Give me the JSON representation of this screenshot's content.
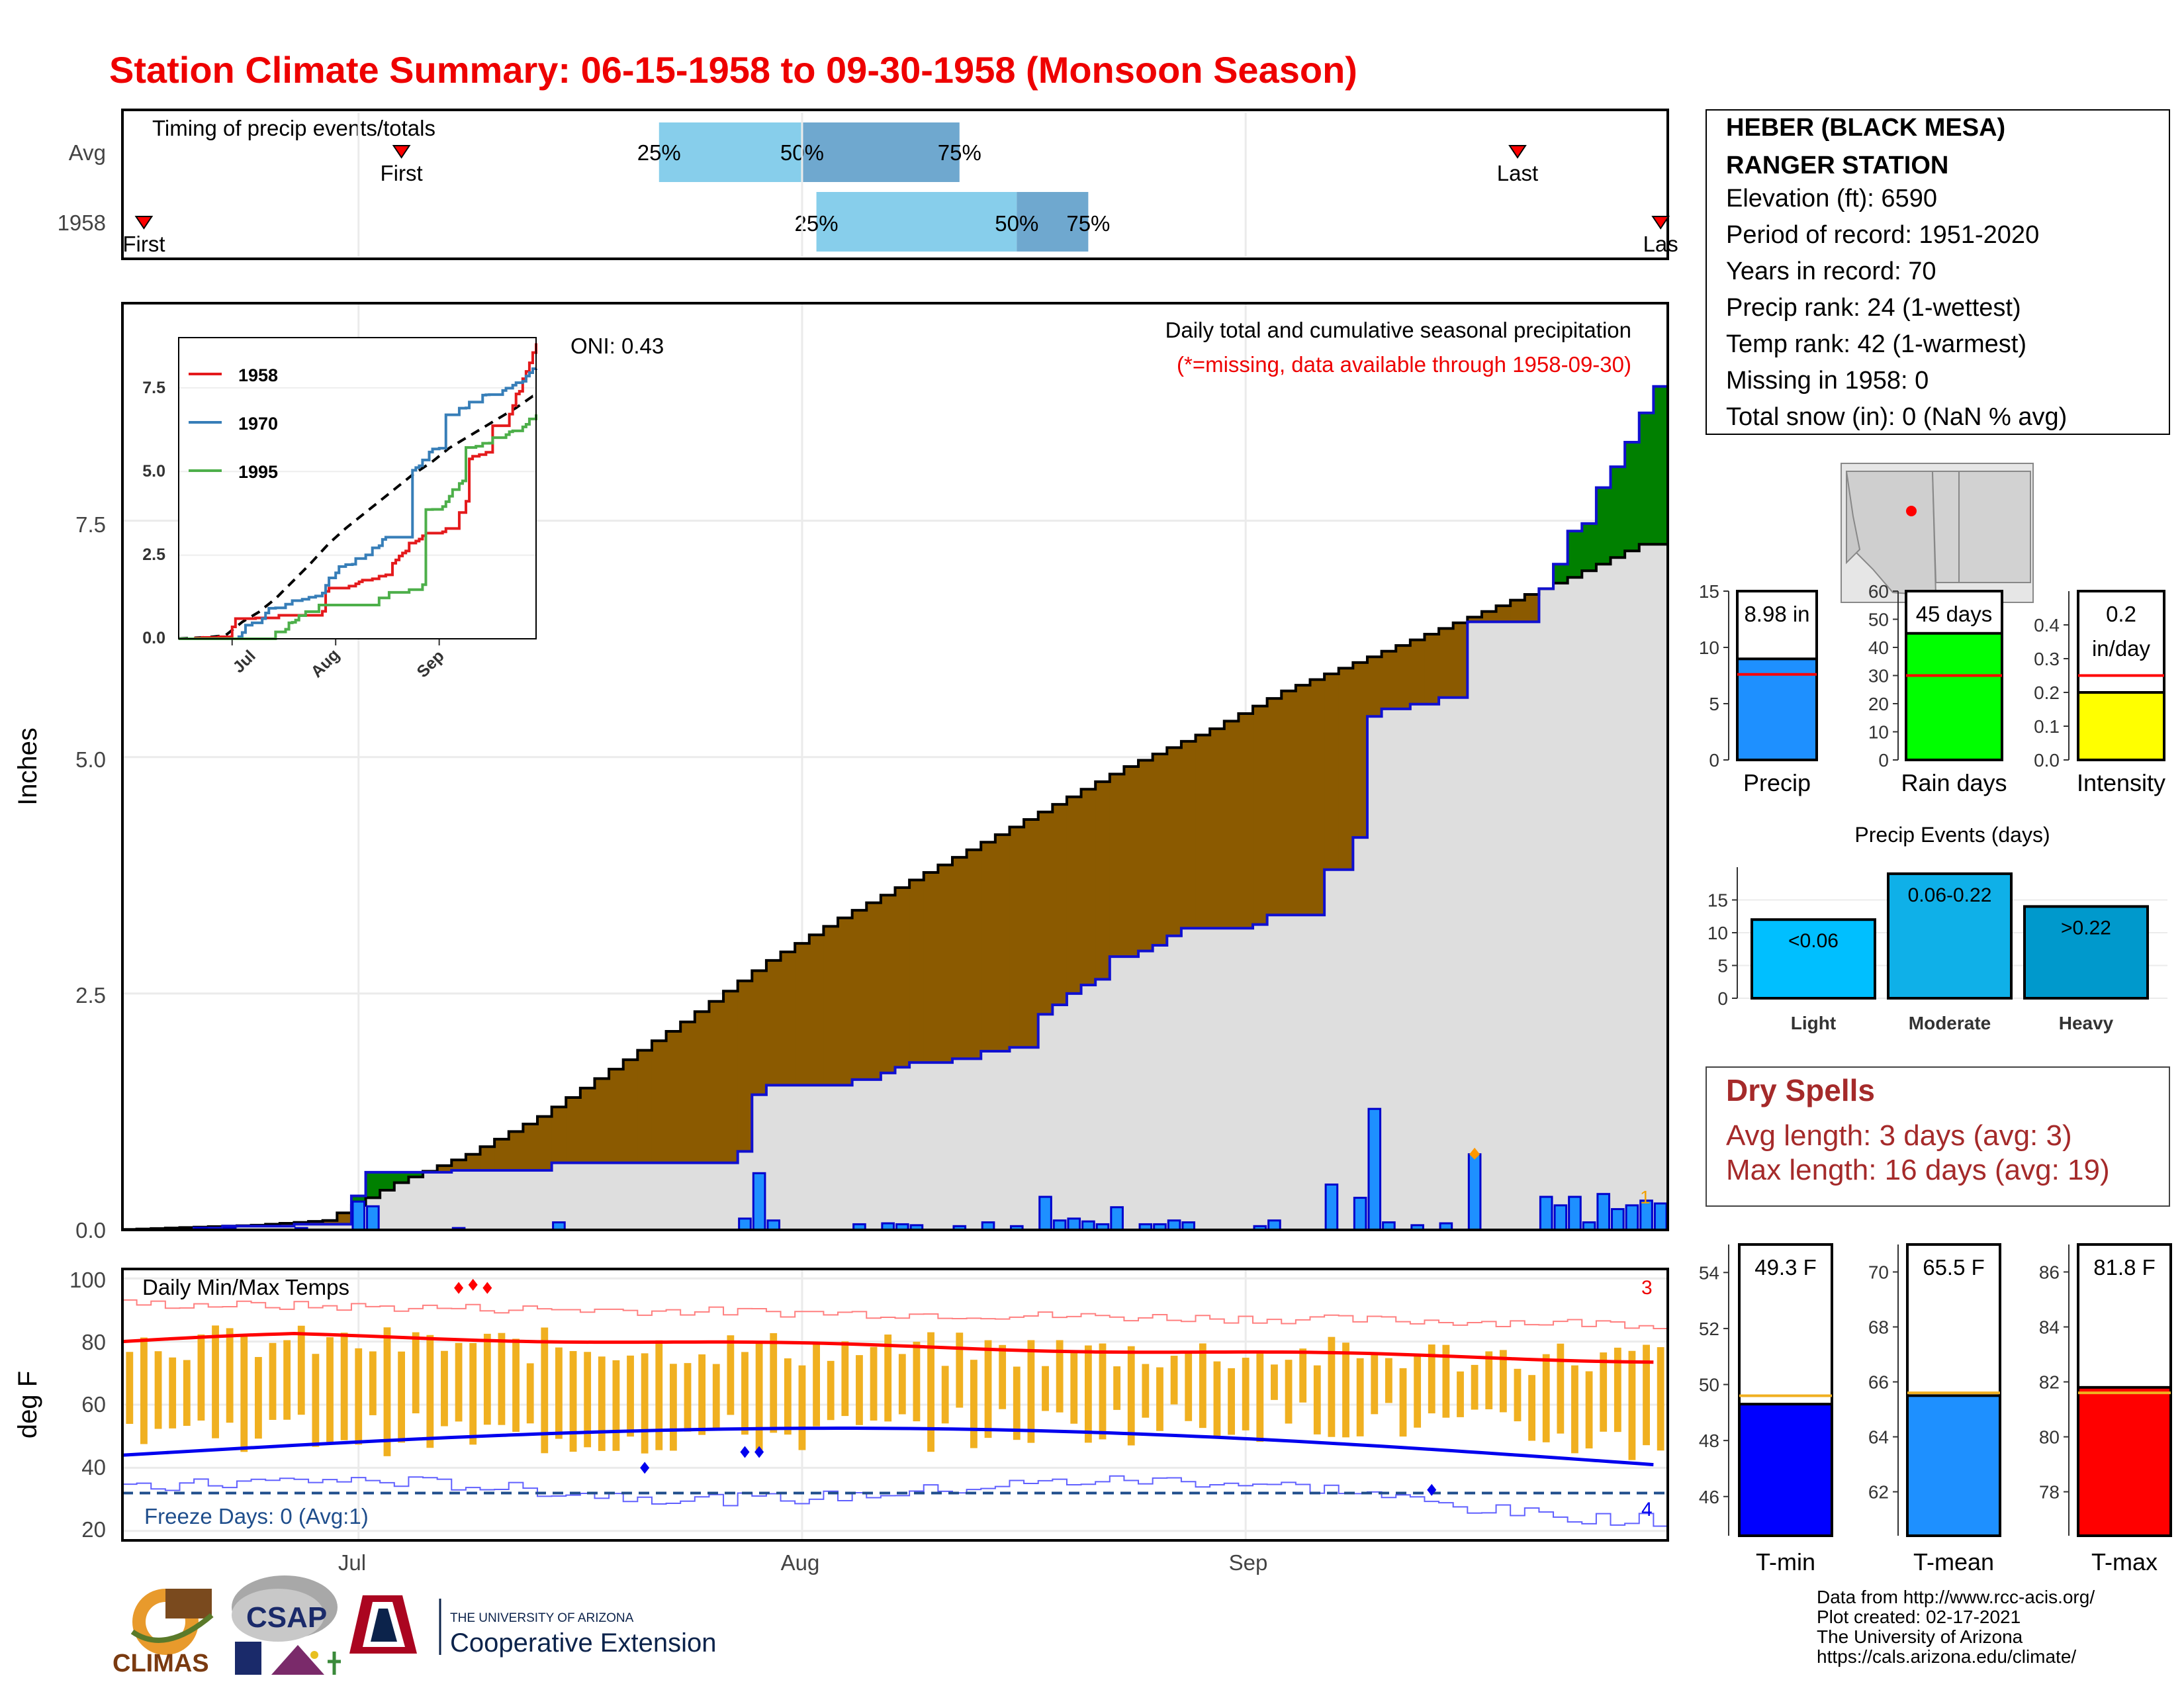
{
  "title": "Station Climate Summary: 06-15-1958 to 09-30-1958 (Monsoon Season)",
  "colors": {
    "title": "#ee0000",
    "light_blue": "#87ceeb",
    "mid_blue": "#6fa8cf",
    "green": "#008000",
    "brown": "#8b5a00",
    "gray_fill": "#dedede",
    "bar_blue": "#1e90ff",
    "orange": "#f0b020",
    "red": "#ff0000",
    "blue": "#0000ff"
  },
  "timing": {
    "title": "Timing of precip events/totals",
    "rows": [
      {
        "label": "Avg",
        "first_label": "First",
        "first_date": "1958-07-04",
        "last_label": "Last",
        "last_date": "1958-09-20",
        "p25": "1958-07-22",
        "p50": "1958-08-01",
        "p75": "1958-08-12",
        "p25_label": "25%",
        "p50_label": "50%",
        "p75_label": "75%"
      },
      {
        "label": "1958",
        "first_label": "First",
        "first_date": "1958-06-16",
        "last_label": "Las",
        "last_date": "1958-09-30",
        "p25": "1958-08-02",
        "p50": "1958-08-16",
        "p75": "1958-08-21",
        "p25_label": "25%",
        "p50_label": "50%",
        "p75_label": "75%"
      }
    ]
  },
  "precip_panel": {
    "ylabel": "Inches",
    "yticks": [
      "0.0",
      "2.5",
      "5.0",
      "7.5"
    ],
    "oni": "ONI: 0.43",
    "desc": "Daily total and cumulative seasonal precipitation",
    "missing_note": "(*=missing, data available through 1958-09-30)",
    "orange_count": "1"
  },
  "inset": {
    "legend": [
      "1958",
      "1970",
      "1995"
    ],
    "yticks": [
      "0.0",
      "2.5",
      "5.0",
      "7.5"
    ],
    "xticks": [
      "Jul",
      "Aug",
      "Sep"
    ]
  },
  "temp_panel": {
    "ylabel": "deg F",
    "title": "Daily Min/Max Temps",
    "yticks": [
      "20",
      "40",
      "60",
      "80",
      "100"
    ],
    "freeze": "Freeze Days: 0 (Avg:1)",
    "max_count": "3",
    "min_count": "4"
  },
  "xaxis": {
    "ticks": [
      "Jul",
      "Aug",
      "Sep"
    ]
  },
  "station": {
    "name1": "HEBER (BLACK MESA)",
    "name2": "RANGER STATION",
    "lines": [
      "Elevation (ft): 6590",
      "Period of record: 1951-2020",
      "Years in record: 70",
      "Precip rank: 24 (1-wettest)",
      "Temp rank: 42 (1-warmest)",
      "Missing in 1958: 0",
      "Total snow (in): 0 (NaN % avg)"
    ]
  },
  "summary_bars": {
    "precip": {
      "label": "Precip",
      "value": 8.98,
      "avg": 7.6,
      "text": "8.98 in",
      "yticks": [
        "0",
        "5",
        "10",
        "15"
      ],
      "ylim": [
        0,
        15
      ]
    },
    "raindays": {
      "label": "Rain days",
      "value": 45,
      "avg": 30,
      "text": "45 days",
      "yticks": [
        "0",
        "10",
        "20",
        "30",
        "40",
        "50",
        "60"
      ],
      "ylim": [
        0,
        60
      ]
    },
    "intensity": {
      "label": "Intensity",
      "value": 0.2,
      "avg": 0.25,
      "text1": "0.2",
      "text2": "in/day",
      "yticks": [
        "0.0",
        "0.1",
        "0.2",
        "0.3",
        "0.4"
      ],
      "ylim": [
        0,
        0.5
      ]
    }
  },
  "events": {
    "title": "Precip Events (days)",
    "yticks": [
      "0",
      "5",
      "10",
      "15"
    ],
    "bars": [
      {
        "label": "Light",
        "value": 12,
        "text": "<0.06",
        "color": "#00bfff"
      },
      {
        "label": "Moderate",
        "value": 19,
        "text": "0.06-0.22",
        "color": "#0fb0e8"
      },
      {
        "label": "Heavy",
        "value": 14,
        "text": ">0.22",
        "color": "#0099cc"
      }
    ]
  },
  "dry": {
    "title": "Dry Spells",
    "avg": "Avg length: 3 days (avg: 3)",
    "max": "Max length: 16 days (avg: 19)"
  },
  "temp_bars": [
    {
      "label": "T-min",
      "value": 49.3,
      "avg": 49.6,
      "text": "49.3 F",
      "yticks": [
        "46",
        "48",
        "50",
        "52",
        "54"
      ],
      "ylim": [
        44.6,
        55
      ],
      "color": "#0000ff"
    },
    {
      "label": "T-mean",
      "value": 65.5,
      "avg": 65.6,
      "text": "65.5 F",
      "yticks": [
        "62",
        "64",
        "66",
        "68",
        "70"
      ],
      "ylim": [
        60.4,
        71
      ],
      "color": "#1e90ff"
    },
    {
      "label": "T-max",
      "value": 81.8,
      "avg": 81.6,
      "text": "81.8 F",
      "yticks": [
        "78",
        "80",
        "82",
        "84",
        "86"
      ],
      "ylim": [
        76.4,
        87
      ],
      "color": "#ff0000"
    }
  ],
  "footer": {
    "lines": [
      "Data from http://www.rcc-acis.org/",
      "Plot created: 02-17-2021",
      "The University of Arizona",
      "https://cals.arizona.edu/climate/"
    ],
    "climas": "CLIMAS",
    "csap": "CSAP",
    "ua_small": "THE UNIVERSITY OF ARIZONA",
    "coop": "Cooperative Extension"
  },
  "chart_data": {
    "type": "area",
    "title": "Daily total and cumulative seasonal precipitation",
    "ylabel": "Inches",
    "ylim": [
      0,
      9.8
    ],
    "x_start": "1958-06-15",
    "x_end": "1958-09-30",
    "daily_precip": [
      {
        "date": "1958-06-20",
        "value": 0.02
      },
      {
        "date": "1958-06-22",
        "value": 0.02
      },
      {
        "date": "1958-06-27",
        "value": 0.02
      },
      {
        "date": "1958-07-01",
        "value": 0.3
      },
      {
        "date": "1958-07-02",
        "value": 0.25
      },
      {
        "date": "1958-07-08",
        "value": 0.02
      },
      {
        "date": "1958-07-15",
        "value": 0.08
      },
      {
        "date": "1958-07-28",
        "value": 0.12
      },
      {
        "date": "1958-07-29",
        "value": 0.6
      },
      {
        "date": "1958-07-30",
        "value": 0.1
      },
      {
        "date": "1958-08-05",
        "value": 0.06
      },
      {
        "date": "1958-08-07",
        "value": 0.07
      },
      {
        "date": "1958-08-08",
        "value": 0.06
      },
      {
        "date": "1958-08-09",
        "value": 0.05
      },
      {
        "date": "1958-08-12",
        "value": 0.04
      },
      {
        "date": "1958-08-14",
        "value": 0.08
      },
      {
        "date": "1958-08-16",
        "value": 0.04
      },
      {
        "date": "1958-08-18",
        "value": 0.35
      },
      {
        "date": "1958-08-19",
        "value": 0.1
      },
      {
        "date": "1958-08-20",
        "value": 0.12
      },
      {
        "date": "1958-08-21",
        "value": 0.09
      },
      {
        "date": "1958-08-22",
        "value": 0.06
      },
      {
        "date": "1958-08-23",
        "value": 0.24
      },
      {
        "date": "1958-08-25",
        "value": 0.06
      },
      {
        "date": "1958-08-26",
        "value": 0.06
      },
      {
        "date": "1958-08-27",
        "value": 0.1
      },
      {
        "date": "1958-08-28",
        "value": 0.08
      },
      {
        "date": "1958-09-02",
        "value": 0.04
      },
      {
        "date": "1958-09-03",
        "value": 0.1
      },
      {
        "date": "1958-09-07",
        "value": 0.48
      },
      {
        "date": "1958-09-09",
        "value": 0.34
      },
      {
        "date": "1958-09-10",
        "value": 1.28
      },
      {
        "date": "1958-09-11",
        "value": 0.08
      },
      {
        "date": "1958-09-13",
        "value": 0.05
      },
      {
        "date": "1958-09-15",
        "value": 0.07
      },
      {
        "date": "1958-09-17",
        "value": 0.8
      },
      {
        "date": "1958-09-22",
        "value": 0.35
      },
      {
        "date": "1958-09-23",
        "value": 0.26
      },
      {
        "date": "1958-09-24",
        "value": 0.35
      },
      {
        "date": "1958-09-25",
        "value": 0.08
      },
      {
        "date": "1958-09-26",
        "value": 0.38
      },
      {
        "date": "1958-09-27",
        "value": 0.22
      },
      {
        "date": "1958-09-28",
        "value": 0.26
      },
      {
        "date": "1958-09-29",
        "value": 0.31
      },
      {
        "date": "1958-09-30",
        "value": 0.28
      }
    ],
    "avg_cumulative": [
      {
        "date": "1958-06-15",
        "value": 0.0
      },
      {
        "date": "1958-06-25",
        "value": 0.05
      },
      {
        "date": "1958-06-30",
        "value": 0.1
      },
      {
        "date": "1958-07-05",
        "value": 0.5
      },
      {
        "date": "1958-07-10",
        "value": 0.8
      },
      {
        "date": "1958-07-15",
        "value": 1.2
      },
      {
        "date": "1958-07-20",
        "value": 1.7
      },
      {
        "date": "1958-07-25",
        "value": 2.2
      },
      {
        "date": "1958-07-31",
        "value": 2.85
      },
      {
        "date": "1958-08-05",
        "value": 3.3
      },
      {
        "date": "1958-08-10",
        "value": 3.7
      },
      {
        "date": "1958-08-15",
        "value": 4.1
      },
      {
        "date": "1958-08-20",
        "value": 4.5
      },
      {
        "date": "1958-08-25",
        "value": 4.9
      },
      {
        "date": "1958-08-31",
        "value": 5.3
      },
      {
        "date": "1958-09-05",
        "value": 5.7
      },
      {
        "date": "1958-09-10",
        "value": 6.0
      },
      {
        "date": "1958-09-15",
        "value": 6.3
      },
      {
        "date": "1958-09-20",
        "value": 6.6
      },
      {
        "date": "1958-09-25",
        "value": 6.9
      },
      {
        "date": "1958-09-30",
        "value": 7.25
      }
    ],
    "temp_series": {
      "ylim": [
        17,
        103
      ],
      "max_avg_start": 83,
      "max_avg_end": 74,
      "min_avg_start": 44,
      "min_avg_end": 41
    }
  }
}
